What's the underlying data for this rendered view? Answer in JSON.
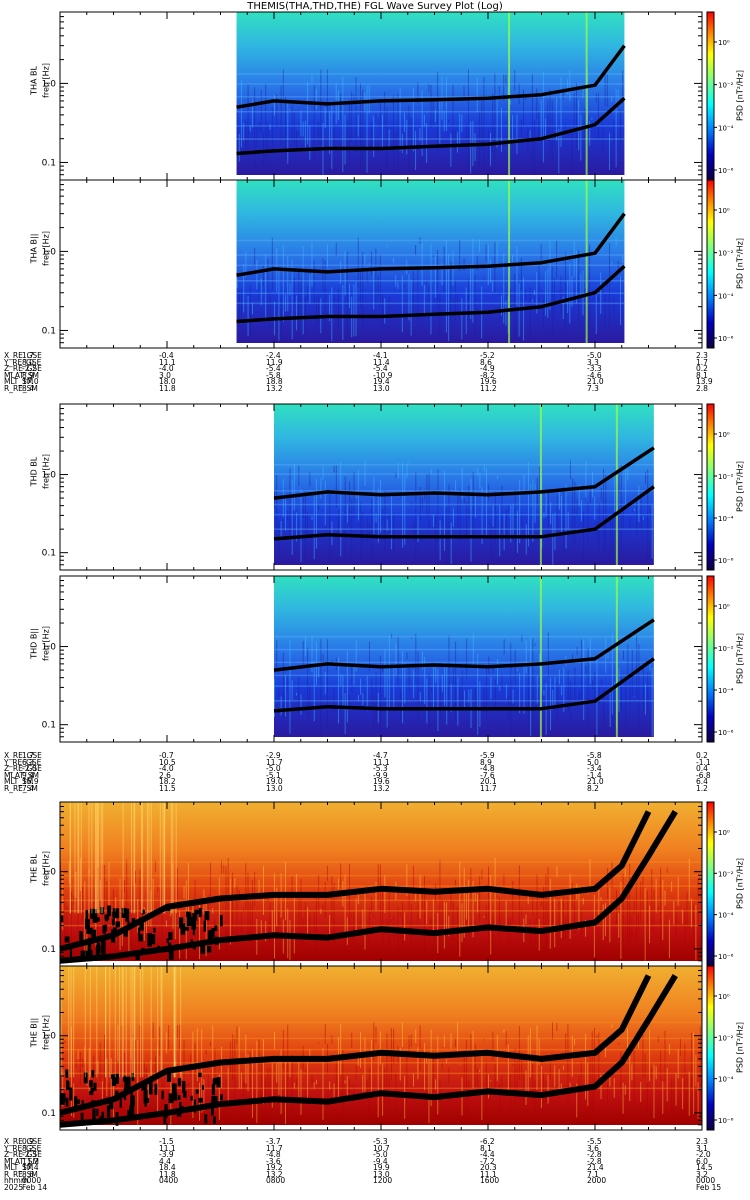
{
  "title": "THEMIS(THA,THD,THE) FGL Wave Survey Plot (Log)",
  "chart_data": [
    {
      "type": "heatmap",
      "panel": "THA BL",
      "ylabel_top": "THA BL",
      "ylabel": "freq [Hz]",
      "zlabel": "PSD [nT²/Hz]",
      "yscale": "log",
      "ylim": [
        0.06,
        8
      ],
      "yticks": [
        "0.1",
        "1.0"
      ],
      "zticks": [
        "10⁰",
        "10⁻²",
        "10⁻⁴",
        "10⁻⁶"
      ],
      "colormap": "rainbow",
      "data_span_hours": [
        6.6,
        21.1
      ],
      "lines": [
        {
          "x": [
            6.6,
            8,
            10,
            12,
            14,
            16,
            18,
            20,
            21.1
          ],
          "y": [
            0.5,
            0.6,
            0.55,
            0.6,
            0.62,
            0.65,
            0.72,
            0.95,
            3.0
          ]
        },
        {
          "x": [
            6.6,
            8,
            10,
            12,
            14,
            16,
            18,
            20,
            21.1
          ],
          "y": [
            0.13,
            0.14,
            0.15,
            0.15,
            0.16,
            0.17,
            0.2,
            0.3,
            0.65
          ]
        }
      ]
    },
    {
      "type": "heatmap",
      "panel": "THA B||",
      "ylabel_top": "THA B||",
      "ylabel": "freq [Hz]",
      "zlabel": "PSD [nT²/Hz]",
      "yscale": "log",
      "ylim": [
        0.06,
        8
      ],
      "yticks": [
        "0.1",
        "1.0"
      ],
      "zticks": [
        "10⁰",
        "10⁻²",
        "10⁻⁴",
        "10⁻⁶"
      ],
      "colormap": "rainbow",
      "data_span_hours": [
        6.6,
        21.1
      ],
      "lines": [
        {
          "x": [
            6.6,
            8,
            10,
            12,
            14,
            16,
            18,
            20,
            21.1
          ],
          "y": [
            0.5,
            0.6,
            0.55,
            0.6,
            0.62,
            0.65,
            0.72,
            0.95,
            3.0
          ]
        },
        {
          "x": [
            6.6,
            8,
            10,
            12,
            14,
            16,
            18,
            20,
            21.1
          ],
          "y": [
            0.13,
            0.14,
            0.15,
            0.15,
            0.16,
            0.17,
            0.2,
            0.3,
            0.65
          ]
        }
      ]
    },
    {
      "type": "heatmap",
      "panel": "THD BL",
      "ylabel_top": "THD BL",
      "ylabel": "freq [Hz]",
      "zlabel": "PSD [nT²/Hz]",
      "yscale": "log",
      "ylim": [
        0.06,
        8
      ],
      "yticks": [
        "0.1",
        "1.0"
      ],
      "zticks": [
        "10⁰",
        "10⁻²",
        "10⁻⁴",
        "10⁻⁶"
      ],
      "colormap": "rainbow",
      "data_span_hours": [
        8.0,
        22.2
      ],
      "lines": [
        {
          "x": [
            8,
            10,
            12,
            14,
            16,
            18,
            20,
            22.2
          ],
          "y": [
            0.5,
            0.6,
            0.55,
            0.58,
            0.55,
            0.6,
            0.7,
            2.2
          ]
        },
        {
          "x": [
            8,
            10,
            12,
            14,
            16,
            18,
            20,
            22.2
          ],
          "y": [
            0.15,
            0.17,
            0.16,
            0.16,
            0.16,
            0.16,
            0.2,
            0.7
          ]
        }
      ]
    },
    {
      "type": "heatmap",
      "panel": "THD B||",
      "ylabel_top": "THD B||",
      "ylabel": "freq [Hz]",
      "zlabel": "PSD [nT²/Hz]",
      "yscale": "log",
      "ylim": [
        0.06,
        8
      ],
      "yticks": [
        "0.1",
        "1.0"
      ],
      "zticks": [
        "10⁰",
        "10⁻²",
        "10⁻⁴",
        "10⁻⁶"
      ],
      "colormap": "rainbow",
      "data_span_hours": [
        8.0,
        22.2
      ],
      "lines": [
        {
          "x": [
            8,
            10,
            12,
            14,
            16,
            18,
            20,
            22.2
          ],
          "y": [
            0.5,
            0.6,
            0.55,
            0.58,
            0.55,
            0.6,
            0.7,
            2.2
          ]
        },
        {
          "x": [
            8,
            10,
            12,
            14,
            16,
            18,
            20,
            22.2
          ],
          "y": [
            0.15,
            0.17,
            0.16,
            0.16,
            0.16,
            0.16,
            0.2,
            0.7
          ]
        }
      ]
    },
    {
      "type": "heatmap",
      "panel": "THE BL",
      "ylabel_top": "THE BL",
      "ylabel": "freq [Hz]",
      "zlabel": "PSD [nT²/Hz]",
      "yscale": "log",
      "ylim": [
        0.06,
        8
      ],
      "yticks": [
        "0.1",
        "1.0"
      ],
      "zticks": [
        "10⁰",
        "10⁻²",
        "10⁻⁴",
        "10⁻⁶"
      ],
      "colormap": "rainbow",
      "data_span_hours": [
        0,
        24
      ],
      "lines": [
        {
          "x": [
            0,
            2,
            4,
            6,
            8,
            10,
            12,
            14,
            16,
            18,
            20,
            21,
            22
          ],
          "y": [
            0.1,
            0.15,
            0.35,
            0.45,
            0.5,
            0.5,
            0.6,
            0.55,
            0.6,
            0.5,
            0.6,
            1.2,
            6
          ]
        },
        {
          "x": [
            0,
            2,
            4,
            6,
            8,
            10,
            12,
            14,
            16,
            18,
            20,
            21,
            22,
            23
          ],
          "y": [
            0.07,
            0.08,
            0.1,
            0.13,
            0.15,
            0.14,
            0.18,
            0.16,
            0.19,
            0.17,
            0.22,
            0.45,
            1.6,
            6
          ]
        }
      ]
    },
    {
      "type": "heatmap",
      "panel": "THE B||",
      "ylabel_top": "THE B||",
      "ylabel": "freq [Hz]",
      "zlabel": "PSD [nT²/Hz]",
      "yscale": "log",
      "ylim": [
        0.06,
        8
      ],
      "yticks": [
        "0.1",
        "1.0"
      ],
      "zticks": [
        "10⁰",
        "10⁻²",
        "10⁻⁴",
        "10⁻⁶"
      ],
      "colormap": "rainbow",
      "data_span_hours": [
        0,
        24
      ],
      "lines": [
        {
          "x": [
            0,
            2,
            4,
            6,
            8,
            10,
            12,
            14,
            16,
            18,
            20,
            21,
            22
          ],
          "y": [
            0.1,
            0.15,
            0.35,
            0.45,
            0.5,
            0.5,
            0.6,
            0.55,
            0.6,
            0.5,
            0.6,
            1.2,
            6
          ]
        },
        {
          "x": [
            0,
            2,
            4,
            6,
            8,
            10,
            12,
            14,
            16,
            18,
            20,
            21,
            22,
            23
          ],
          "y": [
            0.07,
            0.08,
            0.1,
            0.13,
            0.15,
            0.14,
            0.18,
            0.16,
            0.19,
            0.17,
            0.22,
            0.45,
            1.6,
            6
          ]
        }
      ]
    }
  ],
  "ephemeris": [
    {
      "rows": [
        {
          "label": "X_RE_GSE",
          "values": [
            "1.7",
            "-0.4",
            "-2.4",
            "-4.1",
            "-5.2",
            "-5.0",
            "2.3"
          ]
        },
        {
          "label": "Y_RE_GSE",
          "values": [
            "8.0",
            "11.1",
            "11.9",
            "11.4",
            "8.6",
            "3.3",
            "1.7"
          ]
        },
        {
          "label": "Z_RE_GSE",
          "values": [
            "-2.2",
            "-4.0",
            "-5.4",
            "-5.4",
            "-4.9",
            "-3.3",
            "0.2"
          ]
        },
        {
          "label": "MLAT_SM",
          "values": [
            "8.9",
            "3.0",
            "-5.8",
            "-10.9",
            "-8.2",
            "-4.6",
            "8.1"
          ]
        },
        {
          "label": "MLT_SM",
          "values": [
            "17.0",
            "18.0",
            "18.8",
            "19.4",
            "19.6",
            "21.0",
            "13.9"
          ]
        },
        {
          "label": "R_RE_SM",
          "values": [
            "8.4",
            "11.8",
            "13.2",
            "13.0",
            "11.2",
            "7.3",
            "2.8"
          ]
        }
      ]
    },
    {
      "rows": [
        {
          "label": "X_RE_GSE",
          "values": [
            "1.7",
            "-0.7",
            "-2.9",
            "-4.7",
            "-5.9",
            "-5.8",
            "0.2"
          ]
        },
        {
          "label": "Y_RE_GSE",
          "values": [
            "6.3",
            "10.5",
            "11.7",
            "11.1",
            "8.9",
            "5.0",
            "-1.1"
          ]
        },
        {
          "label": "Z_RE_GSE",
          "values": [
            "-2.0",
            "-4.0",
            "-5.0",
            "-5.3",
            "-4.8",
            "-3.4",
            "0.4"
          ]
        },
        {
          "label": "MLAT_SM",
          "values": [
            "9.4",
            "2.6",
            "-5.1",
            "-9.9",
            "-7.6",
            "-1.4",
            "-6.8"
          ]
        },
        {
          "label": "MLT_SM",
          "values": [
            "16.9",
            "18.2",
            "19.0",
            "19.6",
            "20.1",
            "21.0",
            "6.4"
          ]
        },
        {
          "label": "R_RE_SM",
          "values": [
            "7.4",
            "11.5",
            "13.0",
            "13.2",
            "11.7",
            "8.2",
            "1.2"
          ]
        }
      ]
    },
    {
      "rows": [
        {
          "label": "X_RE_GSE",
          "values": [
            "0.9",
            "-1.5",
            "-3.7",
            "-5.3",
            "-6.2",
            "-5.5",
            "2.3"
          ]
        },
        {
          "label": "Y_RE_GSE",
          "values": [
            "8.2",
            "11.1",
            "11.7",
            "10.7",
            "8.1",
            "3.6",
            "3.1"
          ]
        },
        {
          "label": "Z_RE_GSE",
          "values": [
            "-2.3",
            "-3.9",
            "-4.8",
            "-5.0",
            "-4.4",
            "-2.8",
            "-2.0"
          ]
        },
        {
          "label": "MLAT_SM",
          "values": [
            "11.2",
            "4.4",
            "-3.6",
            "-9.4",
            "-7.2",
            "-2.8",
            "6.0"
          ]
        },
        {
          "label": "MLT_SM",
          "values": [
            "17.4",
            "18.4",
            "19.2",
            "19.9",
            "20.3",
            "21.4",
            "14.5"
          ]
        },
        {
          "label": "R_RE_SM",
          "values": [
            "8.6",
            "11.8",
            "13.2",
            "13.0",
            "11.1",
            "7.1",
            "3.2"
          ]
        }
      ],
      "time_rows": [
        {
          "label": "hhmm",
          "values": [
            "0000",
            "0400",
            "0800",
            "1200",
            "1600",
            "2000",
            "0000"
          ]
        },
        {
          "label": "2025",
          "values": [
            "Feb 14",
            "",
            "",
            "",
            "",
            "",
            "Feb 15"
          ]
        }
      ]
    }
  ]
}
